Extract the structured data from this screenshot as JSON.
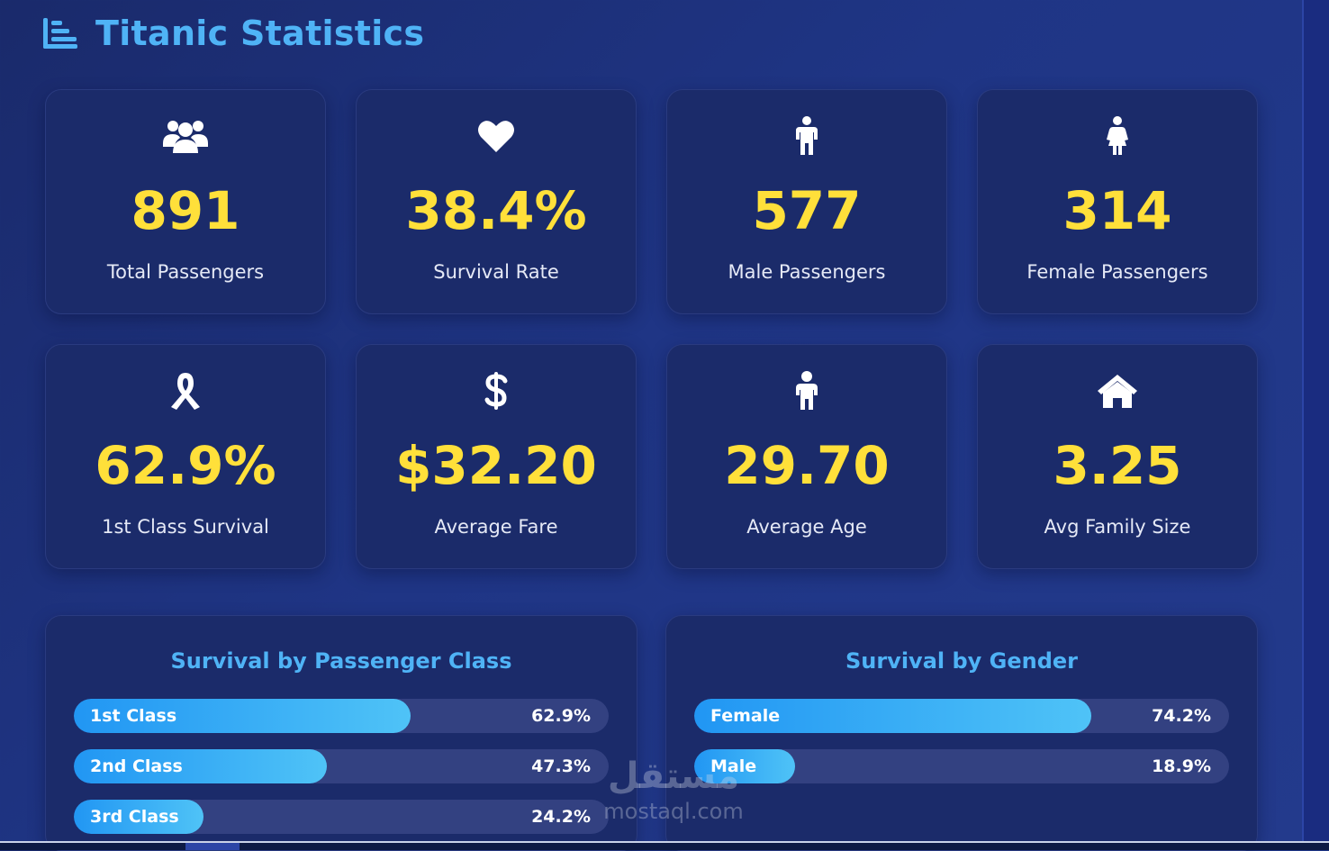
{
  "header": {
    "title": "Titanic Statistics",
    "icon": "bar-chart-icon"
  },
  "stats": [
    {
      "icon": "users-icon",
      "value": "891",
      "label": "Total Passengers"
    },
    {
      "icon": "heart-icon",
      "value": "38.4%",
      "label": "Survival Rate"
    },
    {
      "icon": "male-icon",
      "value": "577",
      "label": "Male Passengers"
    },
    {
      "icon": "female-icon",
      "value": "314",
      "label": "Female Passengers"
    },
    {
      "icon": "ribbon-icon",
      "value": "62.9%",
      "label": "1st Class Survival"
    },
    {
      "icon": "dollar-icon",
      "value": "$32.20",
      "label": "Average Fare"
    },
    {
      "icon": "child-icon",
      "value": "29.70",
      "label": "Average Age"
    },
    {
      "icon": "home-icon",
      "value": "3.25",
      "label": "Avg Family Size"
    }
  ],
  "class_panel": {
    "title": "Survival by Passenger Class",
    "bars": [
      {
        "label": "1st Class",
        "value_text": "62.9%",
        "percent": 62.9
      },
      {
        "label": "2nd Class",
        "value_text": "47.3%",
        "percent": 47.3
      },
      {
        "label": "3rd Class",
        "value_text": "24.2%",
        "percent": 24.2
      }
    ]
  },
  "gender_panel": {
    "title": "Survival by Gender",
    "bars": [
      {
        "label": "Female",
        "value_text": "74.2%",
        "percent": 74.2
      },
      {
        "label": "Male",
        "value_text": "18.9%",
        "percent": 18.9
      }
    ]
  },
  "watermark": {
    "arabic": "مستقل",
    "latin": "mostaql.com"
  },
  "colors": {
    "accent": "#4fb3f6",
    "value": "#ffe03a",
    "card": "#1b2b6a",
    "bar_track": "#334181"
  }
}
